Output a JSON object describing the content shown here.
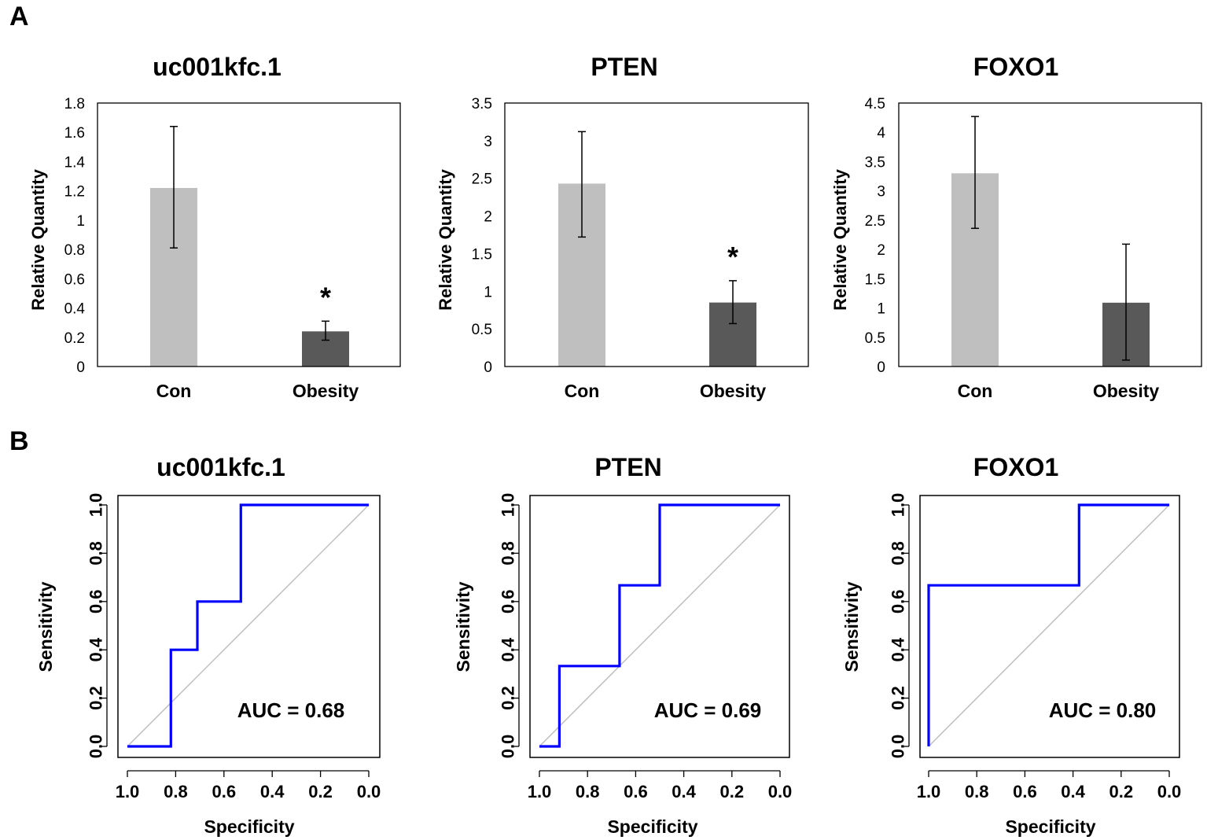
{
  "figure": {
    "panel_a": "A",
    "panel_b": "B"
  },
  "chart_data": [
    {
      "type": "bar",
      "title": "uc001kfc.1",
      "ylabel": "Relative Quantity",
      "xlabel": "",
      "categories": [
        "Con",
        "Obesity"
      ],
      "values": [
        1.22,
        0.24
      ],
      "error_low": [
        0.81,
        0.18
      ],
      "error_high": [
        1.64,
        0.31
      ],
      "colors": [
        "#bfbfbf",
        "#595959"
      ],
      "annotations": [
        "",
        "*"
      ],
      "ylim": [
        0,
        1.8
      ],
      "yticks": [
        0,
        0.2,
        0.4,
        0.6,
        0.8,
        1,
        1.2,
        1.4,
        1.6,
        1.8
      ],
      "ytick_labels": [
        "0",
        "0.2",
        "0.4",
        "0.6",
        "0.8",
        "1",
        "1.2",
        "1.4",
        "1.6",
        "1.8"
      ]
    },
    {
      "type": "bar",
      "title": "PTEN",
      "ylabel": "Relative Quantity",
      "xlabel": "",
      "categories": [
        "Con",
        "Obesity"
      ],
      "values": [
        2.43,
        0.85
      ],
      "error_low": [
        1.72,
        0.57
      ],
      "error_high": [
        3.12,
        1.14
      ],
      "colors": [
        "#bfbfbf",
        "#595959"
      ],
      "annotations": [
        "",
        "*"
      ],
      "ylim": [
        0,
        3.5
      ],
      "yticks": [
        0,
        0.5,
        1,
        1.5,
        2,
        2.5,
        3,
        3.5
      ],
      "ytick_labels": [
        "0",
        "0.5",
        "1",
        "1.5",
        "2",
        "2.5",
        "3",
        "3.5"
      ]
    },
    {
      "type": "bar",
      "title": "FOXO1",
      "ylabel": "Relative Quantity",
      "xlabel": "",
      "categories": [
        "Con",
        "Obesity"
      ],
      "values": [
        3.3,
        1.09
      ],
      "error_low": [
        2.36,
        0.11
      ],
      "error_high": [
        4.27,
        2.09
      ],
      "colors": [
        "#bfbfbf",
        "#595959"
      ],
      "annotations": [
        "",
        ""
      ],
      "ylim": [
        0,
        4.5
      ],
      "yticks": [
        0,
        0.5,
        1,
        1.5,
        2,
        2.5,
        3,
        3.5,
        4,
        4.5
      ],
      "ytick_labels": [
        "0",
        "0.5",
        "1",
        "1.5",
        "2",
        "2.5",
        "3",
        "3.5",
        "4",
        "4.5"
      ]
    },
    {
      "type": "line",
      "title": "uc001kfc.1",
      "xlabel": "Specificity",
      "ylabel": "Sensitivity",
      "specificity": [
        1.0,
        0.82,
        0.82,
        0.71,
        0.71,
        0.53,
        0.53,
        0.0
      ],
      "sensitivity": [
        0.0,
        0.0,
        0.4,
        0.4,
        0.6,
        0.6,
        1.0,
        1.0
      ],
      "auc_label": "AUC = 0.68",
      "line_color": "#0000ff",
      "diagonal_color": "#bebebe",
      "xlim": [
        1.0,
        0.0
      ],
      "ylim": [
        0.0,
        1.0
      ],
      "xticks": [
        1.0,
        0.8,
        0.6,
        0.4,
        0.2,
        0.0
      ],
      "yticks": [
        0.0,
        0.2,
        0.4,
        0.6,
        0.8,
        1.0
      ],
      "xtick_labels": [
        "1.0",
        "0.8",
        "0.6",
        "0.4",
        "0.2",
        "0.0"
      ],
      "ytick_labels": [
        "0.0",
        "0.2",
        "0.4",
        "0.6",
        "0.8",
        "1.0"
      ]
    },
    {
      "type": "line",
      "title": "PTEN",
      "xlabel": "Specificity",
      "ylabel": "Sensitivity",
      "specificity": [
        1.0,
        0.917,
        0.917,
        0.667,
        0.667,
        0.5,
        0.5,
        0.0
      ],
      "sensitivity": [
        0.0,
        0.0,
        0.333,
        0.333,
        0.667,
        0.667,
        1.0,
        1.0
      ],
      "auc_label": "AUC = 0.69",
      "line_color": "#0000ff",
      "diagonal_color": "#bebebe",
      "xlim": [
        1.0,
        0.0
      ],
      "ylim": [
        0.0,
        1.0
      ],
      "xticks": [
        1.0,
        0.8,
        0.6,
        0.4,
        0.2,
        0.0
      ],
      "yticks": [
        0.0,
        0.2,
        0.4,
        0.6,
        0.8,
        1.0
      ],
      "xtick_labels": [
        "1.0",
        "0.8",
        "0.6",
        "0.4",
        "0.2",
        "0.0"
      ],
      "ytick_labels": [
        "0.0",
        "0.2",
        "0.4",
        "0.6",
        "0.8",
        "1.0"
      ]
    },
    {
      "type": "line",
      "title": "FOXO1",
      "xlabel": "Specificity",
      "ylabel": "Sensitivity",
      "specificity": [
        1.0,
        1.0,
        0.375,
        0.375,
        0.0
      ],
      "sensitivity": [
        0.0,
        0.667,
        0.667,
        1.0,
        1.0
      ],
      "auc_label": "AUC = 0.80",
      "line_color": "#0000ff",
      "diagonal_color": "#bebebe",
      "xlim": [
        1.0,
        0.0
      ],
      "ylim": [
        0.0,
        1.0
      ],
      "xticks": [
        1.0,
        0.8,
        0.6,
        0.4,
        0.2,
        0.0
      ],
      "yticks": [
        0.0,
        0.2,
        0.4,
        0.6,
        0.8,
        1.0
      ],
      "xtick_labels": [
        "1.0",
        "0.8",
        "0.6",
        "0.4",
        "0.2",
        "0.0"
      ],
      "ytick_labels": [
        "0.0",
        "0.2",
        "0.4",
        "0.6",
        "0.8",
        "1.0"
      ]
    }
  ]
}
